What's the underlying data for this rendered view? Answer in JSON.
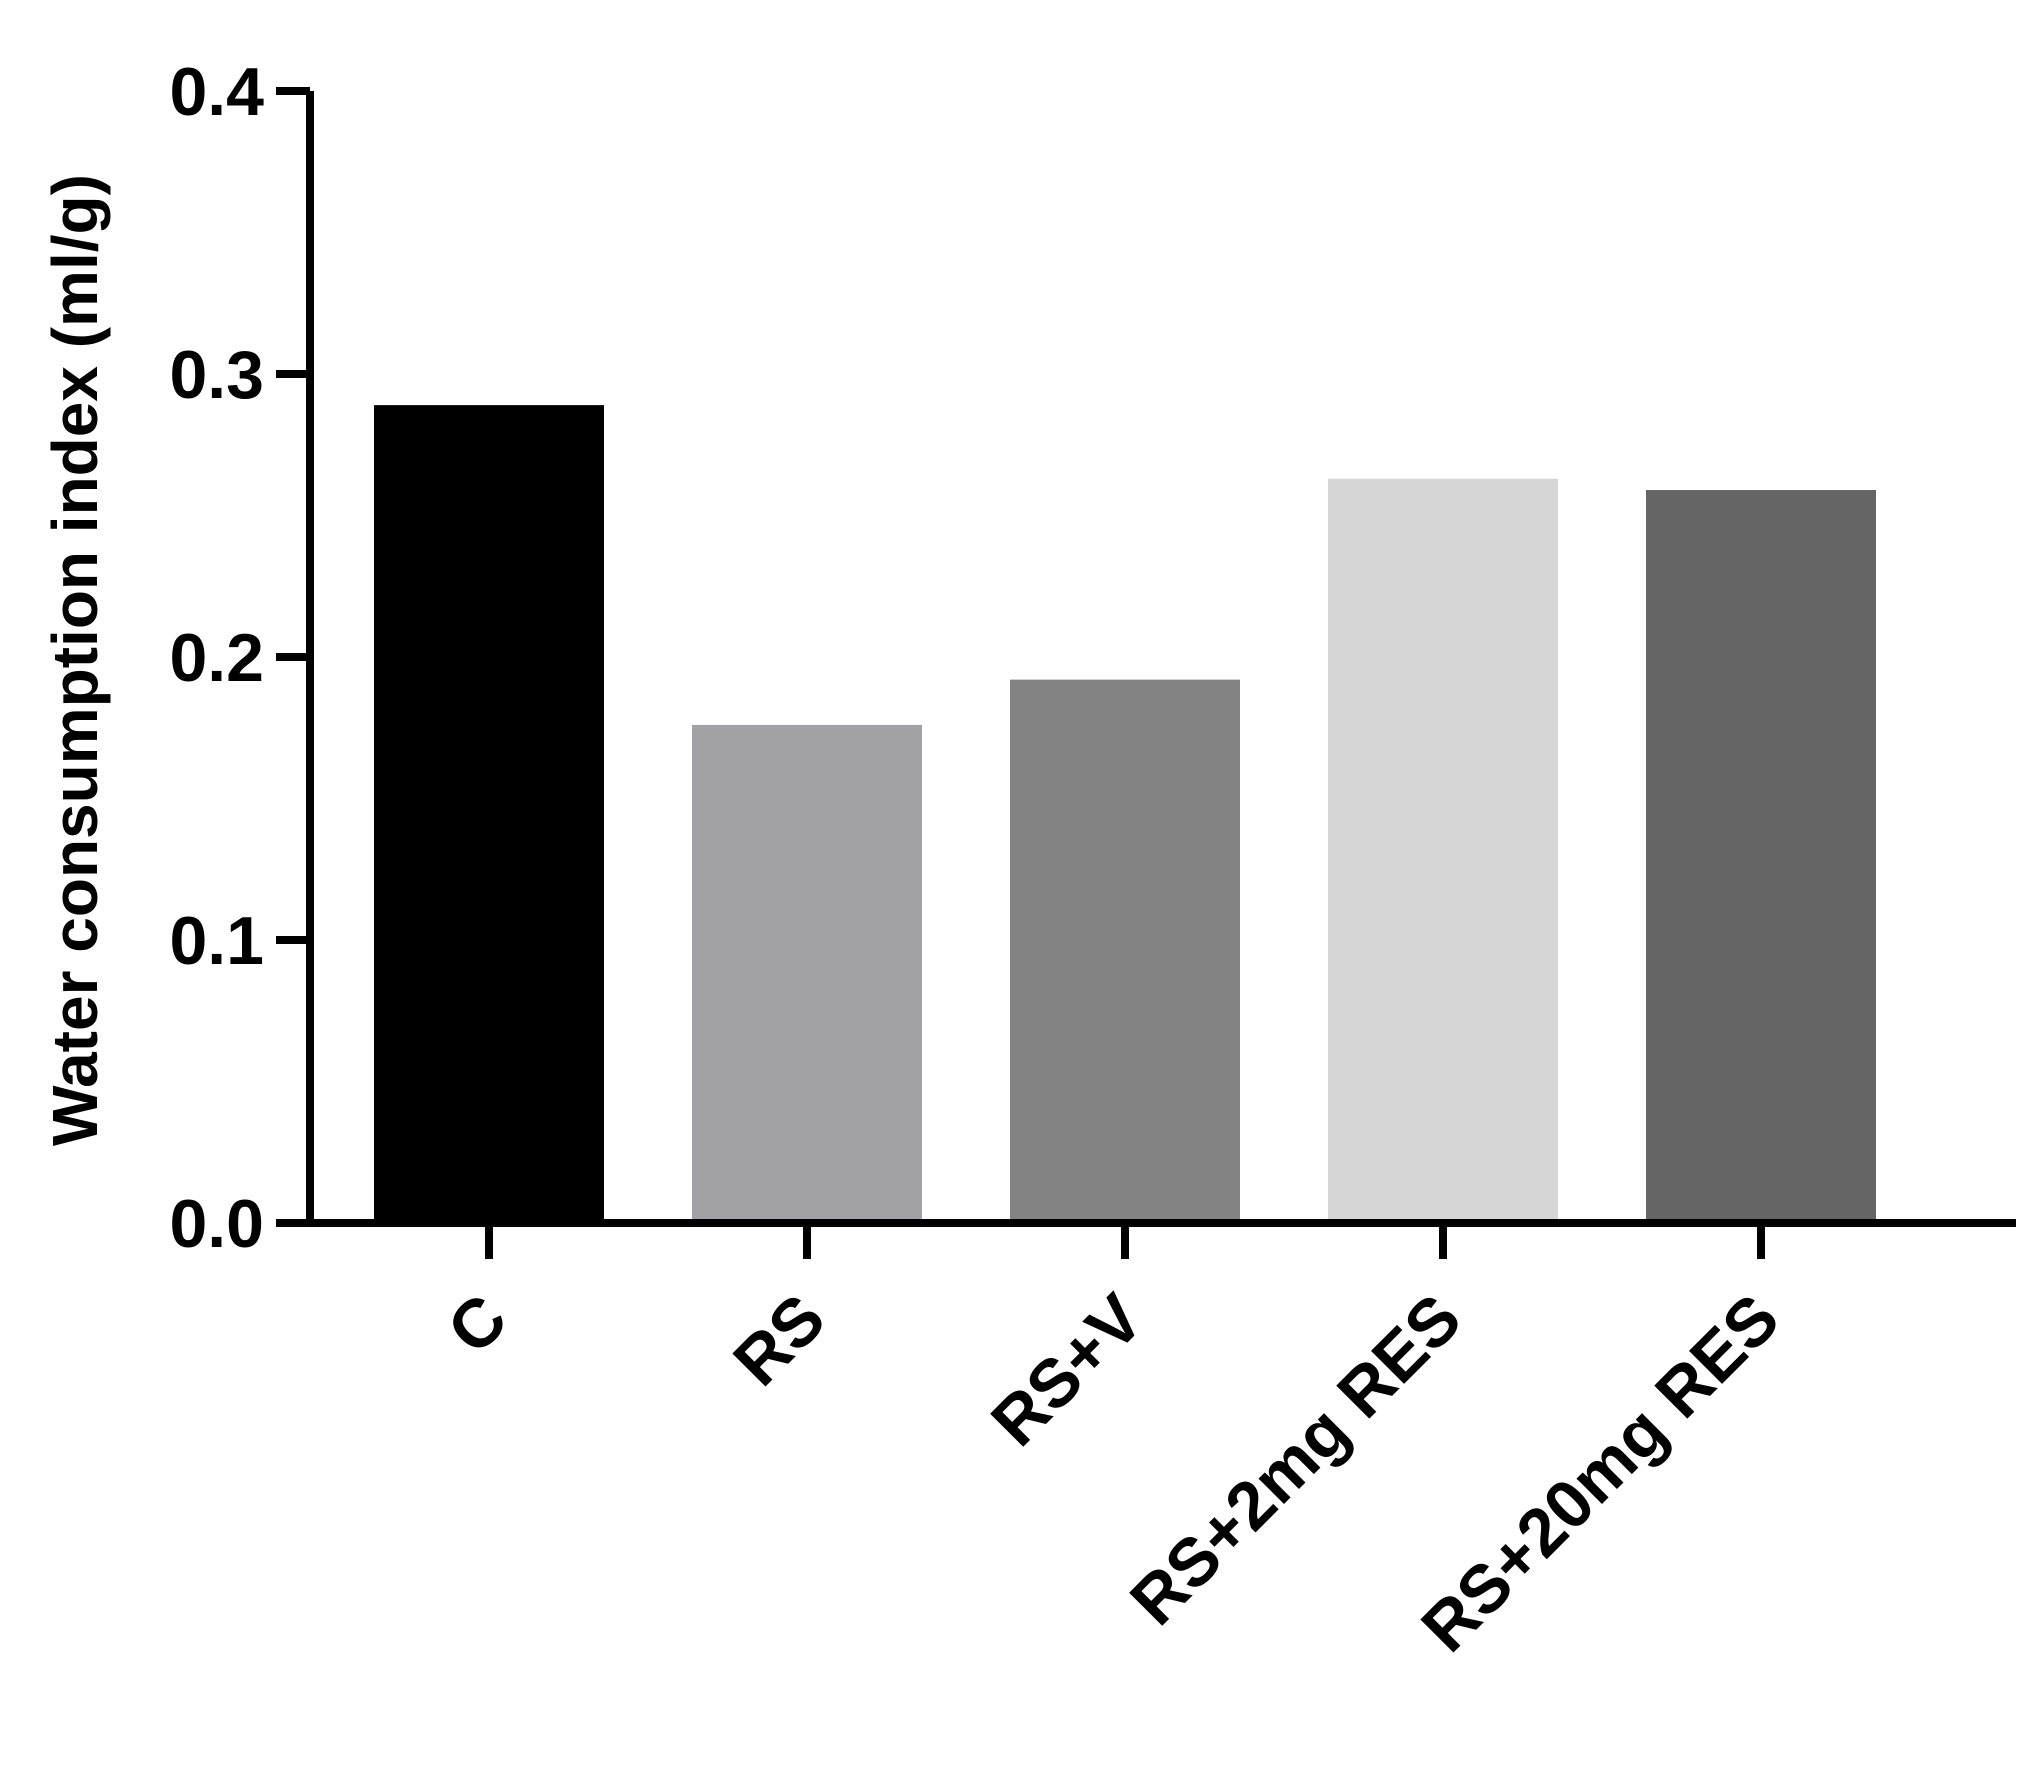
{
  "chart_data": {
    "type": "bar",
    "title": "",
    "xlabel": "",
    "ylabel": "Water consumption index (ml/g)",
    "ylim": [
      0,
      0.4
    ],
    "yticks": [
      "0.0",
      "0.1",
      "0.2",
      "0.3",
      "0.4"
    ],
    "categories": [
      "C",
      "RS",
      "RS+V",
      "RS+2mg RES",
      "RS+20mg RES"
    ],
    "values": [
      0.289,
      0.176,
      0.192,
      0.263,
      0.259
    ],
    "bar_colors": [
      "#000000",
      "#a2a2a5",
      "#838383",
      "#d6d6d6",
      "#656565"
    ],
    "grid": false,
    "legend": "none"
  }
}
